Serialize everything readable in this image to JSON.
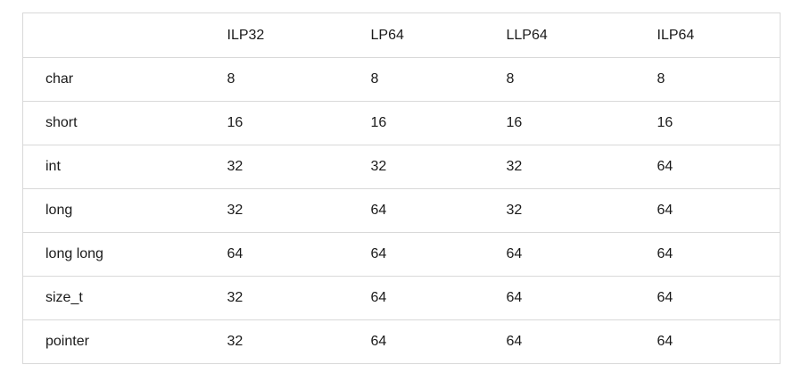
{
  "table": {
    "headers": [
      "",
      "ILP32",
      "LP64",
      "LLP64",
      "ILP64"
    ],
    "rows": [
      [
        "char",
        "8",
        "8",
        "8",
        "8"
      ],
      [
        "short",
        "16",
        "16",
        "16",
        "16"
      ],
      [
        "int",
        "32",
        "32",
        "32",
        "64"
      ],
      [
        "long",
        "32",
        "64",
        "32",
        "64"
      ],
      [
        "long long",
        "64",
        "64",
        "64",
        "64"
      ],
      [
        "size_t",
        "32",
        "64",
        "64",
        "64"
      ],
      [
        "pointer",
        "32",
        "64",
        "64",
        "64"
      ]
    ]
  }
}
